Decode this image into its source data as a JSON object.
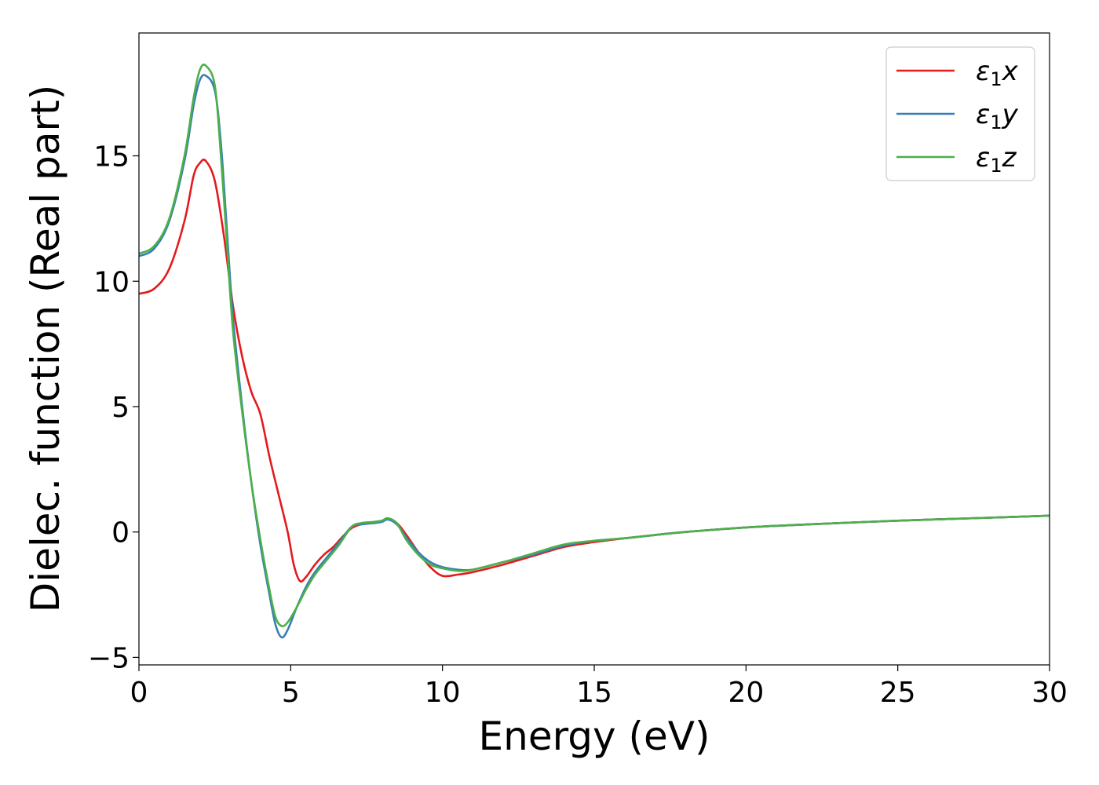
{
  "chart_data": {
    "type": "line",
    "title": "",
    "xlabel": "Energy (eV)",
    "ylabel": "Dielec. function (Real part)",
    "xlim": [
      0,
      30
    ],
    "ylim": [
      -5.3,
      19.9
    ],
    "xticks": [
      0,
      5,
      10,
      15,
      20,
      25,
      30
    ],
    "xtick_labels": [
      "0",
      "5",
      "10",
      "15",
      "20",
      "25",
      "30"
    ],
    "yticks": [
      -5,
      0,
      5,
      10,
      15
    ],
    "ytick_labels": [
      "−5",
      "0",
      "5",
      "10",
      "15"
    ],
    "grid": false,
    "legend_position": "top-right",
    "series": [
      {
        "name": "ε₁x",
        "legend_label": {
          "symbol": "ε",
          "sub": "1",
          "var": "x"
        },
        "color": "#e41a1c",
        "points": [
          [
            0,
            9.5
          ],
          [
            0.5,
            9.7
          ],
          [
            1.0,
            10.5
          ],
          [
            1.5,
            12.4
          ],
          [
            1.8,
            14.2
          ],
          [
            2.0,
            14.7
          ],
          [
            2.2,
            14.8
          ],
          [
            2.5,
            14.0
          ],
          [
            2.8,
            11.8
          ],
          [
            3.1,
            9.0
          ],
          [
            3.4,
            7.0
          ],
          [
            3.7,
            5.6
          ],
          [
            4.0,
            4.7
          ],
          [
            4.3,
            3.0
          ],
          [
            4.6,
            1.5
          ],
          [
            4.9,
            0
          ],
          [
            5.1,
            -1.3
          ],
          [
            5.3,
            -1.95
          ],
          [
            5.5,
            -1.8
          ],
          [
            5.8,
            -1.3
          ],
          [
            6.1,
            -0.9
          ],
          [
            6.4,
            -0.6
          ],
          [
            6.7,
            -0.2
          ],
          [
            7.0,
            0.15
          ],
          [
            7.3,
            0.3
          ],
          [
            7.6,
            0.35
          ],
          [
            7.9,
            0.4
          ],
          [
            8.2,
            0.5
          ],
          [
            8.5,
            0.35
          ],
          [
            8.8,
            -0.1
          ],
          [
            9.2,
            -0.8
          ],
          [
            9.6,
            -1.4
          ],
          [
            10.0,
            -1.75
          ],
          [
            10.5,
            -1.7
          ],
          [
            11.0,
            -1.6
          ],
          [
            12.0,
            -1.3
          ],
          [
            13.0,
            -0.95
          ],
          [
            14.0,
            -0.6
          ],
          [
            15.0,
            -0.4
          ],
          [
            16.0,
            -0.25
          ],
          [
            17.0,
            -0.12
          ],
          [
            18.0,
            0
          ],
          [
            20.0,
            0.18
          ],
          [
            22.0,
            0.3
          ],
          [
            25.0,
            0.45
          ],
          [
            28.0,
            0.57
          ],
          [
            30.0,
            0.65
          ]
        ]
      },
      {
        "name": "ε₁y",
        "legend_label": {
          "symbol": "ε",
          "sub": "1",
          "var": "y"
        },
        "color": "#377eb8",
        "points": [
          [
            0,
            11.0
          ],
          [
            0.5,
            11.3
          ],
          [
            1.0,
            12.4
          ],
          [
            1.5,
            14.8
          ],
          [
            1.8,
            17.0
          ],
          [
            2.0,
            18.0
          ],
          [
            2.2,
            18.2
          ],
          [
            2.5,
            17.6
          ],
          [
            2.7,
            15.5
          ],
          [
            2.9,
            12.0
          ],
          [
            3.1,
            8.5
          ],
          [
            3.4,
            5.0
          ],
          [
            3.7,
            2.0
          ],
          [
            4.0,
            -0.5
          ],
          [
            4.3,
            -2.5
          ],
          [
            4.5,
            -3.7
          ],
          [
            4.7,
            -4.2
          ],
          [
            4.9,
            -3.9
          ],
          [
            5.2,
            -3.0
          ],
          [
            5.5,
            -2.2
          ],
          [
            5.8,
            -1.6
          ],
          [
            6.2,
            -1.0
          ],
          [
            6.6,
            -0.4
          ],
          [
            7.0,
            0.2
          ],
          [
            7.3,
            0.3
          ],
          [
            7.7,
            0.35
          ],
          [
            8.0,
            0.4
          ],
          [
            8.2,
            0.5
          ],
          [
            8.5,
            0.3
          ],
          [
            8.8,
            -0.2
          ],
          [
            9.2,
            -0.8
          ],
          [
            9.6,
            -1.2
          ],
          [
            10.0,
            -1.4
          ],
          [
            10.5,
            -1.5
          ],
          [
            11.0,
            -1.5
          ],
          [
            12.0,
            -1.2
          ],
          [
            13.0,
            -0.9
          ],
          [
            14.0,
            -0.55
          ],
          [
            15.0,
            -0.35
          ],
          [
            16.0,
            -0.25
          ],
          [
            17.0,
            -0.12
          ],
          [
            18.0,
            0
          ],
          [
            20.0,
            0.18
          ],
          [
            22.0,
            0.3
          ],
          [
            25.0,
            0.45
          ],
          [
            28.0,
            0.57
          ],
          [
            30.0,
            0.65
          ]
        ]
      },
      {
        "name": "ε₁z",
        "legend_label": {
          "symbol": "ε",
          "sub": "1",
          "var": "z"
        },
        "color": "#4daf4a",
        "points": [
          [
            0,
            11.1
          ],
          [
            0.5,
            11.4
          ],
          [
            1.0,
            12.5
          ],
          [
            1.5,
            15.0
          ],
          [
            1.8,
            17.3
          ],
          [
            2.0,
            18.4
          ],
          [
            2.2,
            18.6
          ],
          [
            2.5,
            17.8
          ],
          [
            2.7,
            15.0
          ],
          [
            2.9,
            11.5
          ],
          [
            3.1,
            8.0
          ],
          [
            3.4,
            4.8
          ],
          [
            3.7,
            2.0
          ],
          [
            4.0,
            -0.3
          ],
          [
            4.3,
            -2.3
          ],
          [
            4.5,
            -3.4
          ],
          [
            4.7,
            -3.75
          ],
          [
            4.9,
            -3.6
          ],
          [
            5.2,
            -3.0
          ],
          [
            5.5,
            -2.3
          ],
          [
            5.8,
            -1.7
          ],
          [
            6.2,
            -1.1
          ],
          [
            6.6,
            -0.5
          ],
          [
            7.0,
            0.2
          ],
          [
            7.3,
            0.35
          ],
          [
            7.7,
            0.4
          ],
          [
            8.0,
            0.45
          ],
          [
            8.2,
            0.55
          ],
          [
            8.5,
            0.35
          ],
          [
            8.8,
            -0.3
          ],
          [
            9.2,
            -0.9
          ],
          [
            9.6,
            -1.3
          ],
          [
            10.0,
            -1.45
          ],
          [
            10.5,
            -1.55
          ],
          [
            11.0,
            -1.5
          ],
          [
            12.0,
            -1.2
          ],
          [
            13.0,
            -0.85
          ],
          [
            14.0,
            -0.5
          ],
          [
            15.0,
            -0.35
          ],
          [
            16.0,
            -0.25
          ],
          [
            17.0,
            -0.12
          ],
          [
            18.0,
            0
          ],
          [
            20.0,
            0.18
          ],
          [
            22.0,
            0.3
          ],
          [
            25.0,
            0.45
          ],
          [
            28.0,
            0.57
          ],
          [
            30.0,
            0.65
          ]
        ]
      }
    ]
  }
}
